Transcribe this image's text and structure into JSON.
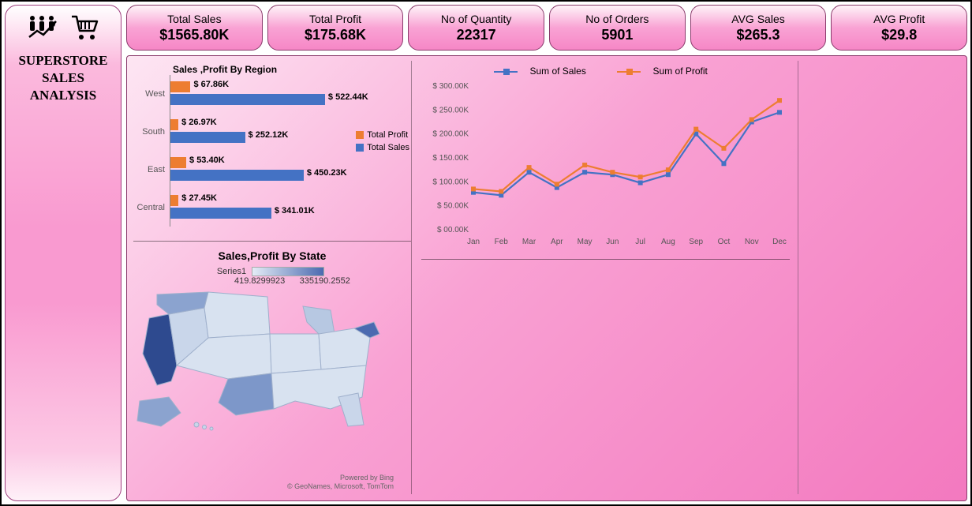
{
  "sidebar": {
    "title_line1": "SUPERSTORE",
    "title_line2": "SALES",
    "title_line3": "ANALYSIS",
    "icon1": "people-trend-icon",
    "icon2": "cart-icon"
  },
  "kpis": [
    {
      "label": "Total Sales",
      "value": "$1565.80K"
    },
    {
      "label": "Total Profit",
      "value": "$175.68K"
    },
    {
      "label": "No of Quantity",
      "value": "22317"
    },
    {
      "label": "No of Orders",
      "value": "5901"
    },
    {
      "label": "AVG Sales",
      "value": "$265.3"
    },
    {
      "label": "AVG Profit",
      "value": "$29.8"
    }
  ],
  "region_chart": {
    "title": "Sales ,Profit By Region",
    "legend_profit": "Total Profit",
    "legend_sales": "Total Sales",
    "profit_color": "#ed7d31",
    "sales_color": "#4472c4",
    "max": 560,
    "rows": [
      {
        "cat": "West",
        "profit": 67.86,
        "profit_lbl": "$ 67.86K",
        "sales": 522.44,
        "sales_lbl": "$ 522.44K"
      },
      {
        "cat": "South",
        "profit": 26.97,
        "profit_lbl": "$ 26.97K",
        "sales": 252.12,
        "sales_lbl": "$ 252.12K"
      },
      {
        "cat": "East",
        "profit": 53.4,
        "profit_lbl": "$ 53.40K",
        "sales": 450.23,
        "sales_lbl": "$ 450.23K"
      },
      {
        "cat": "Central",
        "profit": 27.45,
        "profit_lbl": "$ 27.45K",
        "sales": 341.01,
        "sales_lbl": "$ 341.01K"
      }
    ]
  },
  "state_chart": {
    "title": "Sales,Profit By State",
    "series_label": "Series1",
    "min_label": "419.8299923",
    "max_label": "335190.2552",
    "attr1": "Powered by Bing",
    "attr2": "© GeoNames, Microsoft, TomTom",
    "low_color": "#e4ecf6",
    "high_color": "#2e4a8f"
  },
  "line_chart": {
    "legend_sales": "Sum of Sales",
    "legend_profit": "Sum of Profit",
    "sales_color": "#4472c4",
    "profit_color": "#ed7d31",
    "y_ticks": [
      "$ 00.00K",
      "$ 50.00K",
      "$ 100.00K",
      "$ 150.00K",
      "$ 200.00K",
      "$ 250.00K",
      "$ 300.00K"
    ],
    "x_labels": [
      "Jan",
      "Feb",
      "Mar",
      "Apr",
      "May",
      "Jun",
      "Jul",
      "Aug",
      "Sep",
      "Oct",
      "Nov",
      "Dec"
    ],
    "y_max": 300,
    "sales": [
      78,
      72,
      120,
      88,
      120,
      115,
      98,
      115,
      200,
      138,
      225,
      245
    ],
    "profit": [
      85,
      80,
      130,
      95,
      135,
      120,
      110,
      125,
      210,
      170,
      230,
      270
    ]
  }
}
